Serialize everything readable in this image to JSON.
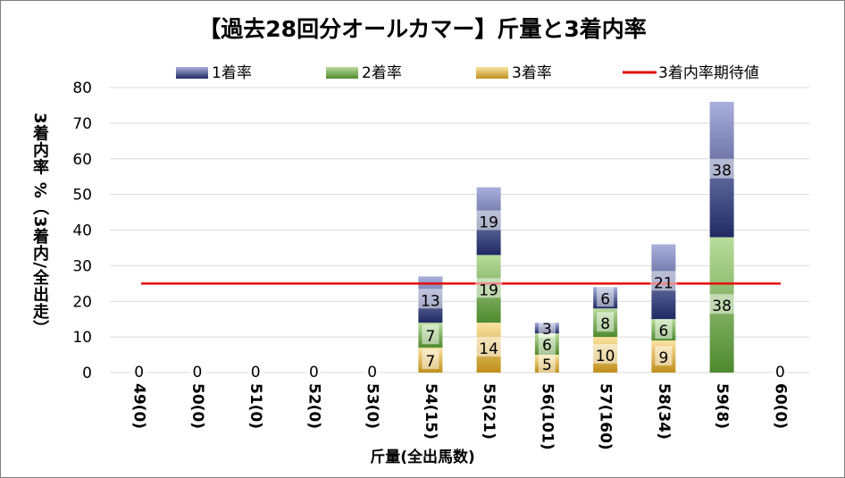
{
  "chart_data": {
    "type": "bar",
    "title": "【過去28回分オールカマー】斤量と3着内率",
    "xlabel": "斤量(全出馬数)",
    "ylabel": "3着内率 %（3着内/全出走）",
    "ylim": [
      0,
      80
    ],
    "yticks": [
      "0",
      "10",
      "20",
      "30",
      "40",
      "50",
      "60",
      "70",
      "80"
    ],
    "grid": true,
    "legend_position": "top",
    "categories": [
      "49(0)",
      "50(0)",
      "51(0)",
      "52(0)",
      "53(0)",
      "54(15)",
      "55(21)",
      "56(101)",
      "57(160)",
      "58(34)",
      "59(8)",
      "60(0)"
    ],
    "series": [
      {
        "name": "3着率",
        "values": [
          0,
          0,
          0,
          0,
          0,
          7,
          14,
          5,
          10,
          9,
          0,
          0
        ],
        "labels": [
          "",
          "",
          "",
          "",
          "",
          "7",
          "14",
          "5",
          "10",
          "9",
          "",
          ""
        ],
        "color_light": "#fbe3a1",
        "color_dark": "#c08f1b"
      },
      {
        "name": "2着率",
        "values": [
          0,
          0,
          0,
          0,
          0,
          7,
          19,
          6,
          8,
          6,
          38,
          0
        ],
        "labels": [
          "",
          "",
          "",
          "",
          "",
          "7",
          "19",
          "6",
          "8",
          "6",
          "38",
          ""
        ],
        "color_light": "#b9dc9c",
        "color_dark": "#4f8a2f"
      },
      {
        "name": "1着率",
        "values": [
          0,
          0,
          0,
          0,
          0,
          13,
          19,
          3,
          6,
          21,
          38,
          0
        ],
        "labels": [
          "0",
          "0",
          "0",
          "0",
          "0",
          "13",
          "19",
          "3",
          "6",
          "21",
          "38",
          "0"
        ],
        "color_light": "#a9b0dc",
        "color_dark": "#1f2a63"
      }
    ],
    "reference_line": {
      "name": "3着内率期待値",
      "value": 25,
      "color": "#e30e0e"
    },
    "legend_order": [
      "1着率",
      "2着率",
      "3着率",
      "3着内率期待値"
    ]
  }
}
